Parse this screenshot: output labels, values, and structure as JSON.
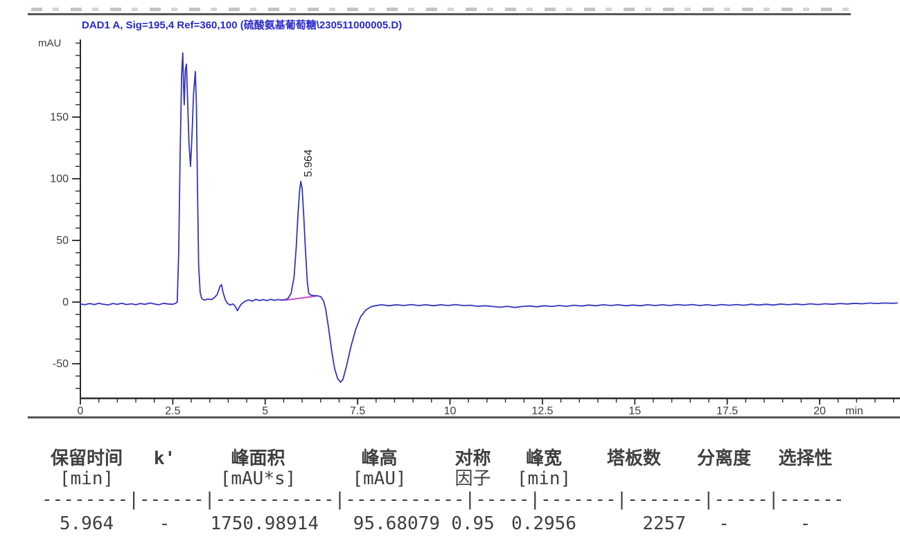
{
  "page": {
    "signal_title": "DAD1 A, Sig=195,4 Ref=360,100 (硫酸氨基葡萄糖\\230511000005.D)"
  },
  "chart_data": {
    "type": "line",
    "title": "DAD1 A, Sig=195,4 Ref=360,100 (硫酸氨基葡萄糖\\230511000005.D)",
    "xlabel": "min",
    "ylabel": "mAU",
    "xlim": [
      0,
      22.2
    ],
    "ylim": [
      -78,
      212
    ],
    "grid": false,
    "x_major_ticks": [
      0,
      2.5,
      5,
      7.5,
      10,
      12.5,
      15,
      17.5,
      20
    ],
    "x_minor_step": 0.5,
    "y_major_ticks": [
      150,
      100,
      50,
      0,
      -50
    ],
    "y_minor_step": 10,
    "trace_color": "#3434be",
    "axis_color": "#2a2a2a",
    "peak_labels": [
      {
        "label": "5.964",
        "t": 5.964,
        "v": 98
      }
    ],
    "integration_baseline": {
      "from": [
        5.53,
        1.5
      ],
      "to": [
        6.37,
        4.8
      ],
      "color": "#cc55cc"
    },
    "series": [
      {
        "name": "DAD1 A",
        "points": [
          [
            0.0,
            -1.5
          ],
          [
            0.12,
            -2.2
          ],
          [
            0.25,
            -1.2
          ],
          [
            0.38,
            -2.0
          ],
          [
            0.5,
            -1.0
          ],
          [
            0.62,
            -1.8
          ],
          [
            0.75,
            -2.3
          ],
          [
            0.88,
            -1.2
          ],
          [
            1.0,
            -1.8
          ],
          [
            1.12,
            -1.0
          ],
          [
            1.25,
            -2.0
          ],
          [
            1.38,
            -1.4
          ],
          [
            1.5,
            -2.2
          ],
          [
            1.62,
            -1.2
          ],
          [
            1.75,
            -1.8
          ],
          [
            1.88,
            -0.8
          ],
          [
            2.0,
            -1.6
          ],
          [
            2.12,
            -2.2
          ],
          [
            2.25,
            -1.0
          ],
          [
            2.38,
            -1.6
          ],
          [
            2.5,
            -1.8
          ],
          [
            2.58,
            -1.0
          ],
          [
            2.62,
            0
          ],
          [
            2.66,
            40
          ],
          [
            2.7,
            120
          ],
          [
            2.74,
            185
          ],
          [
            2.77,
            202
          ],
          [
            2.79,
            178
          ],
          [
            2.81,
            160
          ],
          [
            2.84,
            188
          ],
          [
            2.87,
            193
          ],
          [
            2.9,
            165
          ],
          [
            2.94,
            128
          ],
          [
            2.98,
            110
          ],
          [
            3.02,
            135
          ],
          [
            3.06,
            168
          ],
          [
            3.11,
            187
          ],
          [
            3.14,
            160
          ],
          [
            3.17,
            90
          ],
          [
            3.2,
            30
          ],
          [
            3.24,
            8
          ],
          [
            3.28,
            3
          ],
          [
            3.35,
            1.5
          ],
          [
            3.45,
            2.5
          ],
          [
            3.55,
            2.0
          ],
          [
            3.62,
            3.5
          ],
          [
            3.7,
            6
          ],
          [
            3.78,
            13
          ],
          [
            3.82,
            14
          ],
          [
            3.86,
            8
          ],
          [
            3.92,
            2
          ],
          [
            3.98,
            -1
          ],
          [
            4.05,
            -2.5
          ],
          [
            4.12,
            -1.5
          ],
          [
            4.18,
            -3
          ],
          [
            4.25,
            -7
          ],
          [
            4.3,
            -4
          ],
          [
            4.36,
            -1.5
          ],
          [
            4.45,
            0.5
          ],
          [
            4.55,
            1.8
          ],
          [
            4.65,
            0.8
          ],
          [
            4.75,
            2.2
          ],
          [
            4.85,
            1.2
          ],
          [
            4.95,
            2.0
          ],
          [
            5.05,
            1.2
          ],
          [
            5.15,
            2.2
          ],
          [
            5.25,
            1.4
          ],
          [
            5.35,
            2.0
          ],
          [
            5.45,
            1.6
          ],
          [
            5.55,
            2.0
          ],
          [
            5.62,
            3
          ],
          [
            5.7,
            7
          ],
          [
            5.78,
            20
          ],
          [
            5.84,
            45
          ],
          [
            5.89,
            72
          ],
          [
            5.93,
            90
          ],
          [
            5.964,
            98
          ],
          [
            6.0,
            92
          ],
          [
            6.04,
            72
          ],
          [
            6.09,
            42
          ],
          [
            6.14,
            16
          ],
          [
            6.18,
            7
          ],
          [
            6.24,
            5.5
          ],
          [
            6.32,
            5.2
          ],
          [
            6.42,
            5.0
          ],
          [
            6.5,
            4.5
          ],
          [
            6.58,
            1
          ],
          [
            6.64,
            -6
          ],
          [
            6.72,
            -22
          ],
          [
            6.8,
            -40
          ],
          [
            6.88,
            -54
          ],
          [
            6.96,
            -62
          ],
          [
            7.04,
            -65
          ],
          [
            7.1,
            -63
          ],
          [
            7.2,
            -52
          ],
          [
            7.32,
            -36
          ],
          [
            7.45,
            -22
          ],
          [
            7.58,
            -12
          ],
          [
            7.72,
            -6.5
          ],
          [
            7.85,
            -4
          ],
          [
            7.98,
            -3
          ],
          [
            8.15,
            -2.2
          ],
          [
            8.35,
            -3.0
          ],
          [
            8.55,
            -2.2
          ],
          [
            8.75,
            -2.8
          ],
          [
            8.95,
            -2.0
          ],
          [
            9.15,
            -2.8
          ],
          [
            9.35,
            -2.2
          ],
          [
            9.55,
            -3.0
          ],
          [
            9.75,
            -2.2
          ],
          [
            9.95,
            -2.8
          ],
          [
            10.15,
            -2.0
          ],
          [
            10.35,
            -2.8
          ],
          [
            10.55,
            -2.6
          ],
          [
            10.75,
            -3.4
          ],
          [
            10.95,
            -3.0
          ],
          [
            11.15,
            -3.6
          ],
          [
            11.35,
            -4.2
          ],
          [
            11.55,
            -3.4
          ],
          [
            11.75,
            -4.4
          ],
          [
            11.95,
            -3.6
          ],
          [
            12.15,
            -3.2
          ],
          [
            12.35,
            -3.8
          ],
          [
            12.55,
            -3.0
          ],
          [
            12.75,
            -3.6
          ],
          [
            12.95,
            -2.8
          ],
          [
            13.15,
            -3.4
          ],
          [
            13.35,
            -2.6
          ],
          [
            13.55,
            -3.2
          ],
          [
            13.75,
            -2.4
          ],
          [
            13.95,
            -3.0
          ],
          [
            14.15,
            -2.2
          ],
          [
            14.35,
            -2.8
          ],
          [
            14.55,
            -2.2
          ],
          [
            14.75,
            -3.0
          ],
          [
            14.95,
            -2.4
          ],
          [
            15.15,
            -3.0
          ],
          [
            15.35,
            -2.2
          ],
          [
            15.55,
            -2.8
          ],
          [
            15.75,
            -2.2
          ],
          [
            15.95,
            -2.8
          ],
          [
            16.15,
            -2.0
          ],
          [
            16.35,
            -2.6
          ],
          [
            16.55,
            -2.0
          ],
          [
            16.75,
            -2.8
          ],
          [
            16.95,
            -2.2
          ],
          [
            17.15,
            -2.8
          ],
          [
            17.35,
            -2.0
          ],
          [
            17.55,
            -2.6
          ],
          [
            17.75,
            -2.0
          ],
          [
            17.95,
            -2.6
          ],
          [
            18.15,
            -1.8
          ],
          [
            18.35,
            -2.4
          ],
          [
            18.55,
            -1.8
          ],
          [
            18.75,
            -2.4
          ],
          [
            18.95,
            -1.6
          ],
          [
            19.15,
            -2.2
          ],
          [
            19.35,
            -1.6
          ],
          [
            19.55,
            -2.2
          ],
          [
            19.75,
            -1.4
          ],
          [
            19.95,
            -2.0
          ],
          [
            20.15,
            -1.4
          ],
          [
            20.35,
            -1.8
          ],
          [
            20.55,
            -1.2
          ],
          [
            20.75,
            -1.6
          ],
          [
            20.95,
            -1.0
          ],
          [
            21.15,
            -1.4
          ],
          [
            21.35,
            -0.8
          ],
          [
            21.55,
            -1.2
          ],
          [
            21.75,
            -0.8
          ],
          [
            21.95,
            -1.0
          ],
          [
            22.1,
            -0.8
          ]
        ]
      }
    ]
  },
  "peak_table": {
    "columns": [
      {
        "title": "保留时间",
        "unit": "[min]"
      },
      {
        "title": "k'",
        "unit": ""
      },
      {
        "title": "峰面积",
        "unit": "[mAU*s]"
      },
      {
        "title": "峰高",
        "unit": "[mAU]"
      },
      {
        "title": "对称",
        "unit": "因子"
      },
      {
        "title": "峰宽",
        "unit": "[min]"
      },
      {
        "title": "塔板数",
        "unit": ""
      },
      {
        "title": "分离度",
        "unit": ""
      },
      {
        "title": "选择性",
        "unit": ""
      }
    ],
    "separator": "--------|------|-----------|-----------|-----|-------|-------|-----|------",
    "rows": [
      [
        "5.964",
        "-",
        "1750.98914",
        "95.68079",
        "0.95",
        "0.2956",
        "2257",
        "-",
        "-"
      ]
    ]
  }
}
